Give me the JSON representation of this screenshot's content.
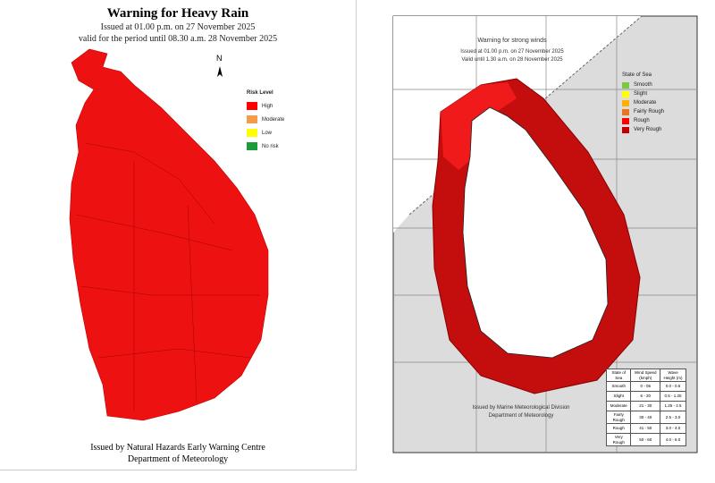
{
  "left_map": {
    "title": "Warning  for Heavy Rain",
    "issued": "Issued at 01.00 p.m. on 27 November 2025",
    "valid": "valid for the period until 08.30 a.m. 28 November 2025",
    "north": "N",
    "legend": {
      "title": "Risk Level",
      "items": [
        {
          "label": "High",
          "color": "#ff0000"
        },
        {
          "label": "Moderate",
          "color": "#f39c4b"
        },
        {
          "label": "Low",
          "color": "#ffff00"
        },
        {
          "label": "No risk",
          "color": "#1a9c3a"
        }
      ]
    },
    "footer": [
      "Issued by Natural Hazards Early Warning Centre",
      "Department of Meteorology"
    ]
  },
  "right_map": {
    "title": "Warning for strong winds",
    "issued": "Issued at 01.00 p.m. on 27 November 2025",
    "valid": "Valid until 1.30 a.m. on 28 November 2025",
    "legend": {
      "title": "State of Sea",
      "items": [
        {
          "label": "Smooth",
          "color": "#7ac943"
        },
        {
          "label": "Slight",
          "color": "#ffff00"
        },
        {
          "label": "Moderate",
          "color": "#ffb000"
        },
        {
          "label": "Fairly Rough",
          "color": "#e8761c"
        },
        {
          "label": "Rough",
          "color": "#ff0000"
        },
        {
          "label": "Very Rough",
          "color": "#c00000"
        }
      ]
    },
    "table": {
      "headers": [
        "State of Sea",
        "Wind Speed (kmph)",
        "Wave Height (m)"
      ],
      "rows": [
        [
          "Smooth",
          "0 - 05",
          "0.0 - 0.5"
        ],
        [
          "Slight",
          "6 - 20",
          "0.5 - 1.25"
        ],
        [
          "Moderate",
          "21 - 30",
          "1.25 - 2.5"
        ],
        [
          "Fairly Rough",
          "30 - 40",
          "2.5 - 3.0"
        ],
        [
          "Rough",
          "41 - 50",
          "3.0 - 4.0"
        ],
        [
          "Very Rough",
          "50 - 60",
          "4.0 - 6.0"
        ]
      ]
    },
    "footer": [
      "Issued by Marine Meteorological Division",
      "Department of Meteorology"
    ]
  }
}
